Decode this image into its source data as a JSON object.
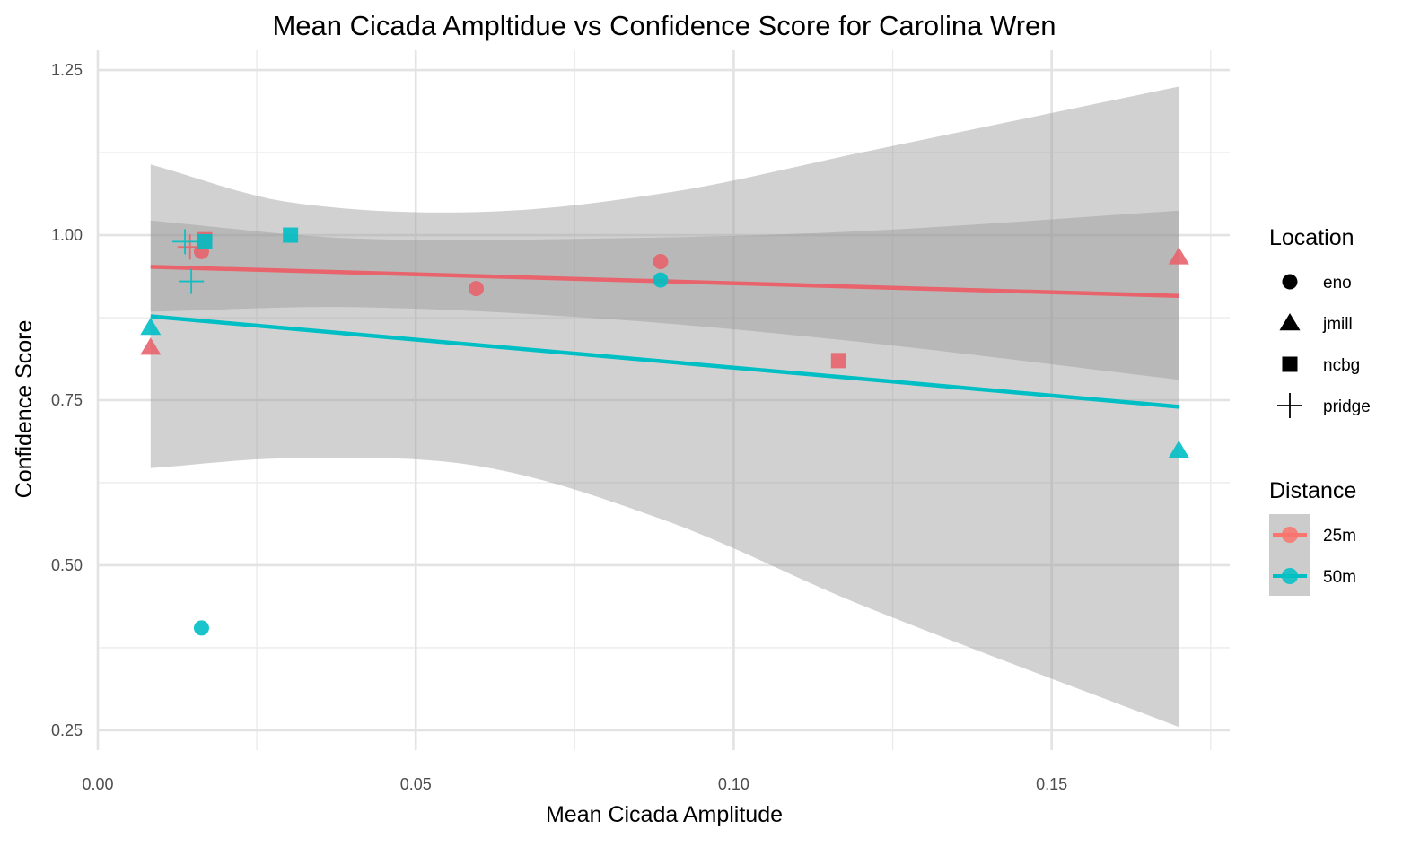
{
  "chart_data": {
    "type": "scatter",
    "title": "Mean Cicada Ampltidue vs Confidence Score for Carolina Wren",
    "xlabel": "Mean Cicada Amplitude",
    "ylabel": "Confidence Score",
    "xlim": [
      0.0,
      0.178
    ],
    "ylim": [
      0.22,
      1.28
    ],
    "x_ticks": [
      {
        "value": 0.0,
        "label": "0.00"
      },
      {
        "value": 0.05,
        "label": "0.05"
      },
      {
        "value": 0.1,
        "label": "0.10"
      },
      {
        "value": 0.15,
        "label": "0.15"
      }
    ],
    "y_ticks": [
      {
        "value": 0.25,
        "label": "0.25"
      },
      {
        "value": 0.5,
        "label": "0.50"
      },
      {
        "value": 0.75,
        "label": "0.75"
      },
      {
        "value": 1.0,
        "label": "1.00"
      },
      {
        "value": 1.25,
        "label": "1.25"
      }
    ],
    "grid": true,
    "legend_position": "right",
    "legends": [
      {
        "title": "Location",
        "items": [
          {
            "label": "eno",
            "shape": "circle"
          },
          {
            "label": "jmill",
            "shape": "triangle"
          },
          {
            "label": "ncbg",
            "shape": "square"
          },
          {
            "label": "pridge",
            "shape": "plus"
          }
        ]
      },
      {
        "title": "Distance",
        "items": [
          {
            "label": "25m",
            "color": "#F8766D"
          },
          {
            "label": "50m",
            "color": "#00BFC4"
          }
        ]
      }
    ],
    "series": [
      {
        "name": "25m",
        "color": "#E8636B",
        "points": [
          {
            "x": 0.0163,
            "y": 0.975,
            "location": "eno"
          },
          {
            "x": 0.0595,
            "y": 0.919,
            "location": "eno"
          },
          {
            "x": 0.0885,
            "y": 0.96,
            "location": "eno"
          },
          {
            "x": 0.0083,
            "y": 0.83,
            "location": "jmill"
          },
          {
            "x": 0.17,
            "y": 0.967,
            "location": "jmill"
          },
          {
            "x": 0.0168,
            "y": 0.993,
            "location": "ncbg"
          },
          {
            "x": 0.1165,
            "y": 0.81,
            "location": "ncbg"
          },
          {
            "x": 0.0145,
            "y": 0.982,
            "location": "pridge"
          }
        ],
        "fit": {
          "x": [
            0.0083,
            0.17
          ],
          "y": [
            0.952,
            0.908
          ]
        },
        "band": {
          "x": [
            0.0083,
            0.04,
            0.08,
            0.12,
            0.17
          ],
          "upper": [
            1.022,
            0.995,
            0.995,
            1.006,
            1.037
          ],
          "lower": [
            0.884,
            0.891,
            0.873,
            0.838,
            0.781
          ]
        }
      },
      {
        "name": "50m",
        "color": "#00BFC4",
        "points": [
          {
            "x": 0.0163,
            "y": 0.405,
            "location": "eno"
          },
          {
            "x": 0.0885,
            "y": 0.932,
            "location": "eno"
          },
          {
            "x": 0.0083,
            "y": 0.86,
            "location": "jmill"
          },
          {
            "x": 0.17,
            "y": 0.674,
            "location": "jmill"
          },
          {
            "x": 0.0168,
            "y": 0.99,
            "location": "ncbg"
          },
          {
            "x": 0.0303,
            "y": 1.0,
            "location": "ncbg"
          },
          {
            "x": 0.0137,
            "y": 0.99,
            "location": "pridge"
          },
          {
            "x": 0.0147,
            "y": 0.93,
            "location": "pridge"
          }
        ],
        "fit": {
          "x": [
            0.0083,
            0.17
          ],
          "y": [
            0.877,
            0.74
          ]
        },
        "band": {
          "x": [
            0.0083,
            0.03,
            0.06,
            0.09,
            0.12,
            0.17
          ],
          "upper": [
            1.107,
            1.05,
            1.035,
            1.065,
            1.125,
            1.225
          ],
          "lower": [
            0.647,
            0.662,
            0.65,
            0.565,
            0.44,
            0.255
          ]
        }
      }
    ]
  }
}
